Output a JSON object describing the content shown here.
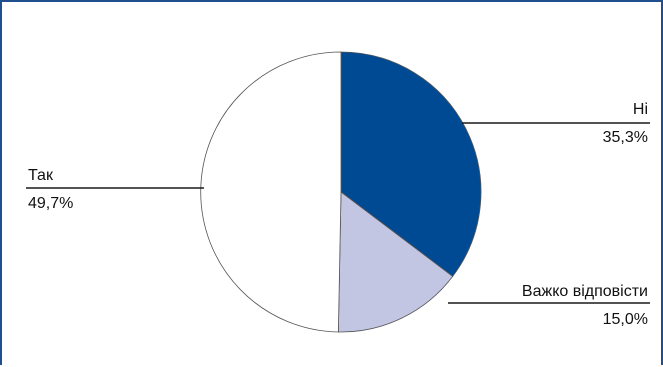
{
  "chart_data": {
    "type": "pie",
    "title": "",
    "start_angle_deg": 0,
    "direction": "clockwise",
    "slices": [
      {
        "label": "Ні",
        "value": 35.3,
        "value_label": "35,3%",
        "color": "#004a93"
      },
      {
        "label": "Важко відповісти",
        "value": 15.0,
        "value_label": "15,0%",
        "color": "#c2c6e3"
      },
      {
        "label": "Так",
        "value": 49.7,
        "value_label": "49,7%",
        "color": "#ffffff"
      }
    ]
  },
  "colors": {
    "frame": "#1f4f8e",
    "slice_stroke": "#555555",
    "leader_line": "#1a1a1a"
  }
}
